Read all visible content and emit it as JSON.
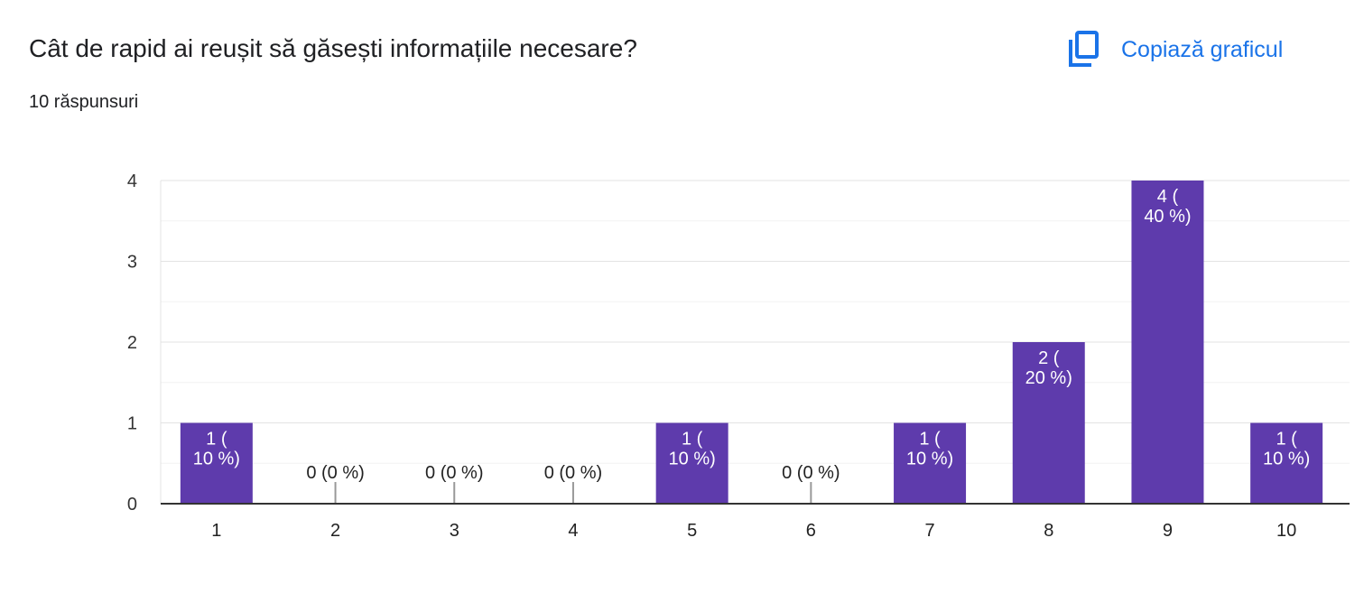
{
  "header": {
    "question": "Cât de rapid ai reușit să găsești informațiile necesare?",
    "responses": "10 răspunsuri",
    "copy_label": "Copiază graficul",
    "copy_icon": "copy-icon"
  },
  "colors": {
    "bar": "#5e3bac",
    "accent": "#1a73e8",
    "grid": "#e8e8e8",
    "axis": "#333333"
  },
  "chart_data": {
    "type": "bar",
    "categories": [
      "1",
      "2",
      "3",
      "4",
      "5",
      "6",
      "7",
      "8",
      "9",
      "10"
    ],
    "values": [
      1,
      0,
      0,
      0,
      1,
      0,
      1,
      2,
      4,
      1
    ],
    "data_labels": [
      [
        "1 (",
        "10 %)"
      ],
      [
        "0 (0 %)"
      ],
      [
        "0 (0 %)"
      ],
      [
        "0 (0 %)"
      ],
      [
        "1 (",
        "10 %)"
      ],
      [
        "0 (0 %)"
      ],
      [
        "1 (",
        "10 %)"
      ],
      [
        "2 (",
        "20 %)"
      ],
      [
        "4 (",
        "40 %)"
      ],
      [
        "1 (",
        "10 %)"
      ]
    ],
    "yticks": [
      "0",
      "1",
      "2",
      "3",
      "4"
    ],
    "ylim": [
      0,
      4
    ],
    "grid": true,
    "legend": "none"
  }
}
